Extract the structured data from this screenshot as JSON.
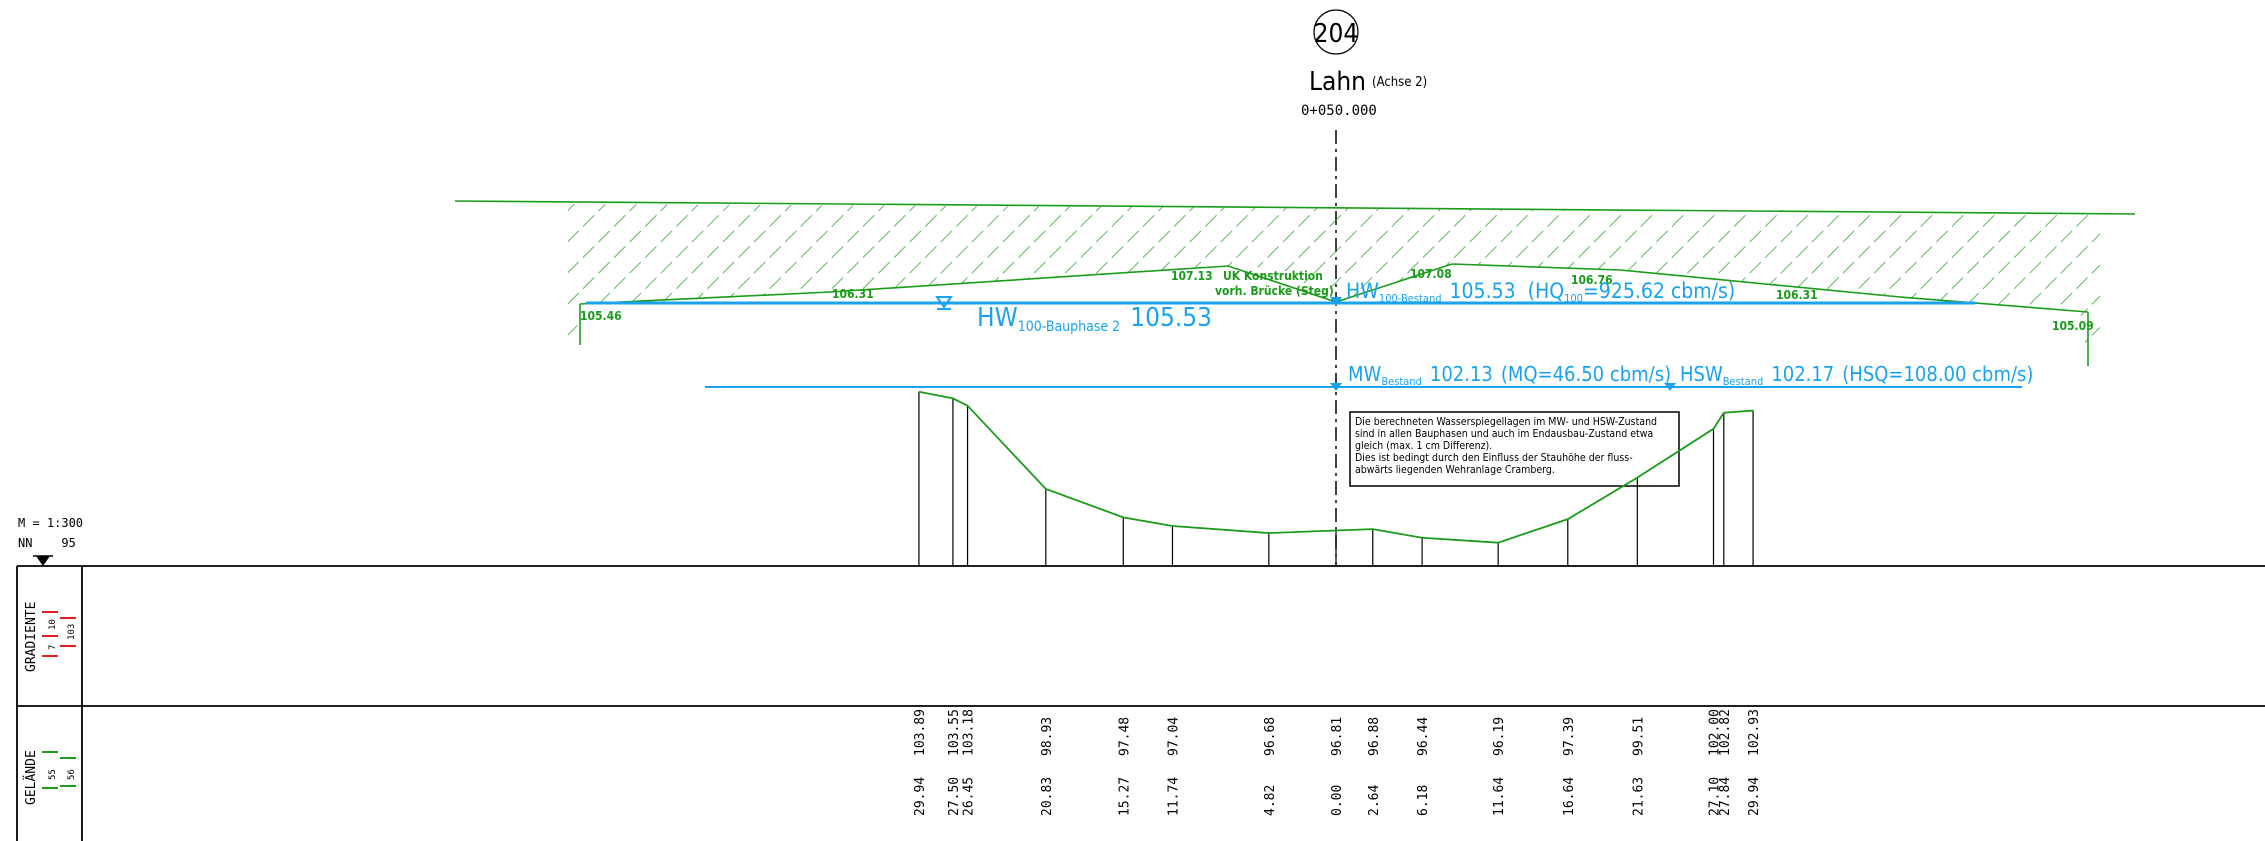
{
  "station": {
    "number": "204",
    "river": "Lahn",
    "axis_note": "(Achse 2)",
    "chainage": "0+050.000"
  },
  "scale": {
    "scale_label": "M = 1:300",
    "datum_label": "NN    95"
  },
  "water_levels": {
    "hw_bauphase": {
      "prefix": "HW",
      "sub": "100-Bauphase 2",
      "value": "105.53"
    },
    "hw_bestand": {
      "prefix": "HW",
      "sub": "100-Bestand",
      "value": "105.53",
      "q_pre": "(HQ",
      "q_sub": "100",
      "q_post": "=925.62 cbm/s)"
    },
    "mw_bestand": {
      "prefix": "MW",
      "sub": "Bestand",
      "value": "102.13",
      "q": "(MQ=46.50 cbm/s)"
    },
    "hsw_bestand": {
      "prefix": "HSW",
      "sub": "Bestand",
      "value": "102.17",
      "q": "(HSQ=108.00 cbm/s)"
    }
  },
  "bridge": {
    "label_line1": "UK Konstruktion",
    "label_line2": "vorh. Brücke (Steg)",
    "elevations": [
      "105.46",
      "106.31",
      "107.13",
      "107.08",
      "106.76",
      "106.31",
      "105.09"
    ]
  },
  "note": {
    "lines": [
      "Die berechneten Wasserspiegellagen im MW- und HSW-Zustand",
      "sind in allen Bauphasen und auch im Endausbau-Zustand etwa",
      "gleich (max. 1 cm Differenz).",
      "Dies ist bedingt durch den Einfluss der Stauhöhe der fluss-",
      "abwärts liegenden Wehranlage Cramberg."
    ]
  },
  "table": {
    "rows": [
      {
        "label": "GRADIENTE",
        "legend": [
          "10",
          "7",
          "103"
        ]
      },
      {
        "label": "GELÄNDE",
        "legend": [
          "55",
          "56"
        ]
      }
    ]
  },
  "colors": {
    "terrain": "#1a9c1a",
    "water": "#1aa3ec",
    "line": "#000000",
    "gradient_red": "#e02020"
  },
  "chart_data": {
    "type": "line",
    "title": "",
    "xlabel": "",
    "ylabel": "",
    "series": [
      {
        "name": "GELÄNDE",
        "x": [
          -29.94,
          -27.5,
          -26.45,
          -20.83,
          -15.27,
          -11.74,
          -4.82,
          0.0,
          2.64,
          6.18,
          11.64,
          16.64,
          21.63,
          27.1,
          27.84,
          29.94
        ],
        "values": [
          103.89,
          103.55,
          103.18,
          98.93,
          97.48,
          97.04,
          96.68,
          96.81,
          96.88,
          96.44,
          96.19,
          97.39,
          99.51,
          102.0,
          102.82,
          102.93
        ],
        "x_labels": [
          "29.94",
          "27.50",
          "26.45",
          "20.83",
          "15.27",
          "11.74",
          "4.82",
          "0.00",
          "2.64",
          "6.18",
          "11.64",
          "16.64",
          "21.63",
          "27.10",
          "27.84",
          "29.94"
        ],
        "y_labels": [
          "103.89",
          "103.55",
          "103.18",
          "98.93",
          "97.48",
          "97.04",
          "96.68",
          "96.81",
          "96.88",
          "96.44",
          "96.19",
          "97.39",
          "99.51",
          "102.00",
          "102.82",
          "102.93"
        ]
      }
    ],
    "datum": 95,
    "scale": "1:300"
  }
}
